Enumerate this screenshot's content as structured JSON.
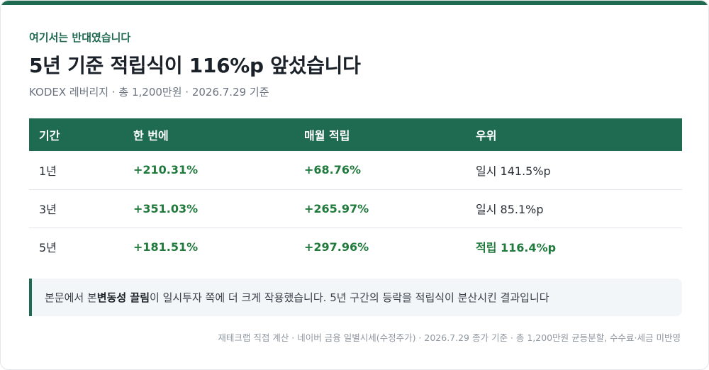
{
  "header": {
    "eyebrow": "여기서는 반대였습니다",
    "title": "5년 기준 적립식이 116%p 앞섰습니다",
    "subtitle": "KODEX 레버리지 · 총 1,200만원 · 2026.7.29 기준"
  },
  "table": {
    "columns": [
      "기간",
      "한 번에",
      "매월 적립",
      "우위"
    ],
    "rows": [
      {
        "period": "1년",
        "lump": "+210.31%",
        "monthly": "+68.76%",
        "winner": "일시 141.5%p",
        "winner_highlight": false
      },
      {
        "period": "3년",
        "lump": "+351.03%",
        "monthly": "+265.97%",
        "winner": "일시 85.1%p",
        "winner_highlight": false
      },
      {
        "period": "5년",
        "lump": "+181.51%",
        "monthly": "+297.96%",
        "winner": "적립 116.4%p",
        "winner_highlight": true
      }
    ]
  },
  "note": {
    "prefix": "본문에서 본 ",
    "emphasis": "변동성 끌림",
    "suffix": "이 일시투자 쪽에 더 크게 작용했습니다. 5년 구간의 등락을 적립식이 분산시킨 결과입니다"
  },
  "footer": "재테크랩 직접 계산 · 네이버 금융 일별시세(수정주가) · 2026.7.29 종가 기준 · 총 1,200만원 균등분할, 수수료·세금 미반영",
  "colors": {
    "accent": "#1f6b52",
    "positive": "#1f7a3c"
  }
}
